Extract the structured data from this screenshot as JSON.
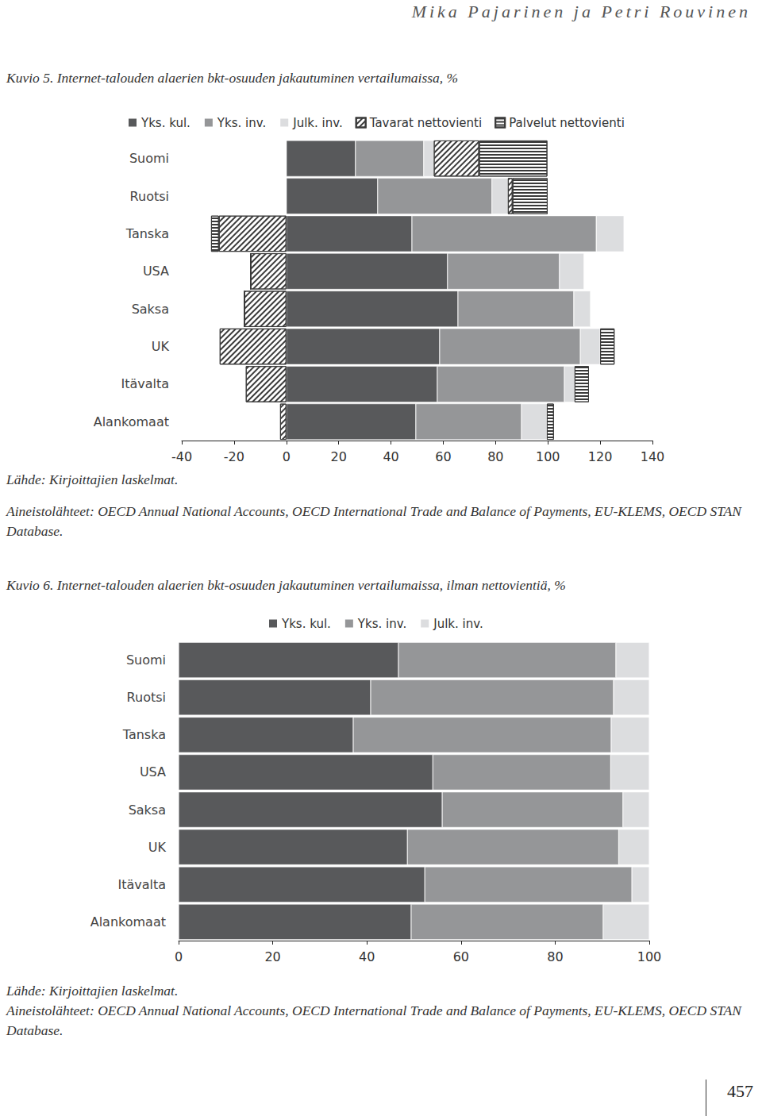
{
  "header": "Mika Pajarinen ja Petri Rouvinen",
  "page_number": 457,
  "chart_data": [
    {
      "type": "bar",
      "title": "Kuvio 5. Internet-talouden alaerien bkt-osuuden jakautuminen vertailumaissa, %",
      "orientation": "horizontal",
      "stacked": true,
      "legend": "top",
      "grid": false,
      "categories": [
        "Suomi",
        "Ruotsi",
        "Tanska",
        "USA",
        "Saksa",
        "UK",
        "Itävalta",
        "Alankomaat"
      ],
      "series": [
        {
          "name": "Yks. kul.",
          "color": "#58595b",
          "values": [
            26.4,
            34.9,
            48.0,
            61.6,
            65.6,
            58.6,
            57.7,
            49.5
          ]
        },
        {
          "name": "Yks. inv.",
          "color": "#959698",
          "values": [
            26.1,
            43.7,
            70.5,
            42.8,
            44.3,
            53.8,
            48.6,
            40.4
          ]
        },
        {
          "name": "Julk. inv.",
          "color": "#dcdddf",
          "values": [
            3.9,
            6.1,
            10.6,
            9.4,
            6.4,
            7.6,
            3.9,
            9.7
          ]
        },
        {
          "name": "Tavarat nettovienti",
          "color": "#3a3a3a",
          "values": [
            17.3,
            1.8,
            -25.8,
            -13.7,
            -16.1,
            -25.5,
            -15.5,
            -2.4
          ]
        },
        {
          "name": "Palvelut nettovienti",
          "color": "#3a3a3a",
          "values": [
            26.1,
            13.4,
            -3.0,
            0,
            0,
            5.5,
            5.5,
            2.7
          ]
        }
      ],
      "xlim": [
        -40,
        140
      ],
      "xticks": [
        -40,
        -20,
        0,
        20,
        40,
        60,
        80,
        100,
        120,
        140
      ],
      "annotations": [
        "Lähde: Kirjoittajien laskelmat.",
        "Aineistolähteet: OECD Annual National Accounts, OECD International Trade and Balance of Payments, EU-KLEMS, OECD STAN Database."
      ]
    },
    {
      "type": "bar",
      "title": "Kuvio 6. Internet-talouden alaerien bkt-osuuden jakautuminen vertailumaissa, ilman nettovientiä, %",
      "orientation": "horizontal",
      "stacked": true,
      "legend": "top",
      "grid": false,
      "categories": [
        "Suomi",
        "Ruotsi",
        "Tanska",
        "USA",
        "Saksa",
        "UK",
        "Itävalta",
        "Alankomaat"
      ],
      "series": [
        {
          "name": "Yks. kul.",
          "color": "#58595b",
          "values": [
            46.7,
            40.8,
            37.1,
            54.0,
            56.0,
            48.6,
            52.3,
            49.4
          ]
        },
        {
          "name": "Yks. inv.",
          "color": "#959698",
          "values": [
            46.2,
            51.6,
            54.8,
            37.8,
            38.4,
            44.9,
            44.0,
            40.8
          ]
        },
        {
          "name": "Julk. inv.",
          "color": "#dcdddf",
          "values": [
            7.1,
            7.6,
            8.1,
            8.2,
            5.6,
            6.5,
            3.7,
            9.8
          ]
        }
      ],
      "xlim": [
        0,
        100
      ],
      "xticks": [
        0,
        20,
        40,
        60,
        80,
        100
      ],
      "annotations": [
        "Lähde: Kirjoittajien laskelmat.",
        "Aineistolähteet: OECD Annual National Accounts, OECD International Trade and Balance of Payments, EU-KLEMS, OECD STAN Database."
      ]
    }
  ]
}
